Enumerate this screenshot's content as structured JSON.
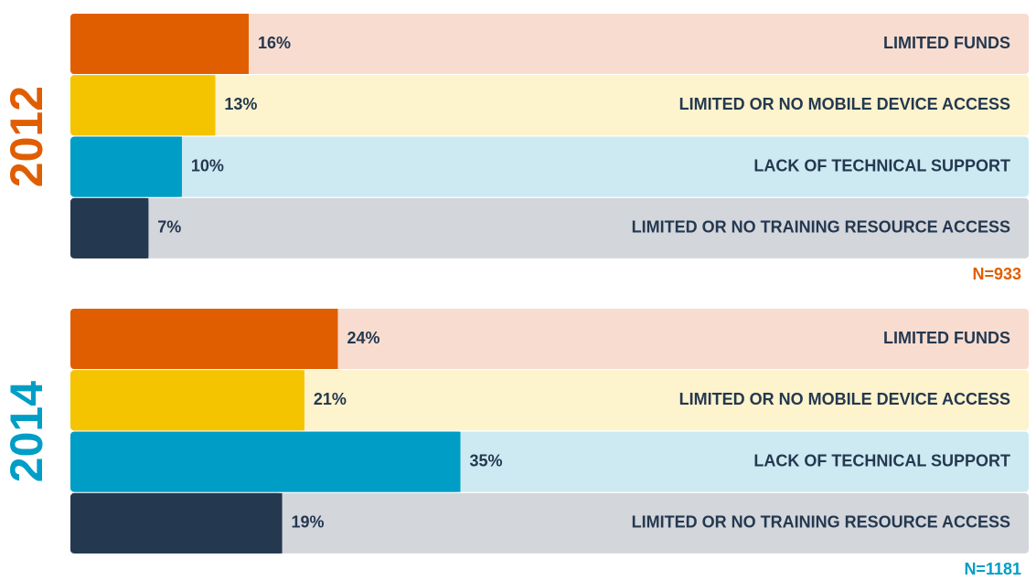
{
  "chart_data": [
    {
      "type": "bar",
      "orientation": "horizontal",
      "title": "2012",
      "accent_color": "#e05e00",
      "categories": [
        "LIMITED FUNDS",
        "LIMITED OR NO MOBILE DEVICE ACCESS",
        "LACK OF TECHNICAL SUPPORT",
        "LIMITED OR NO TRAINING RESOURCE ACCESS"
      ],
      "values": [
        16,
        13,
        10,
        7
      ],
      "value_labels": [
        "16%",
        "13%",
        "10%",
        "7%"
      ],
      "colors": [
        "#e05e00",
        "#f5c400",
        "#009ec6",
        "#243850"
      ],
      "track_colors": [
        "#f8dccf",
        "#fdf3cc",
        "#cdeaf2",
        "#d3d6db"
      ],
      "xlim": [
        0,
        86
      ],
      "annotation": "N=933"
    },
    {
      "type": "bar",
      "orientation": "horizontal",
      "title": "2014",
      "accent_color": "#009ec6",
      "categories": [
        "LIMITED FUNDS",
        "LIMITED OR NO MOBILE DEVICE ACCESS",
        "LACK OF TECHNICAL SUPPORT",
        "LIMITED OR NO TRAINING RESOURCE ACCESS"
      ],
      "values": [
        24,
        21,
        35,
        19
      ],
      "value_labels": [
        "24%",
        "21%",
        "35%",
        "19%"
      ],
      "colors": [
        "#e05e00",
        "#f5c400",
        "#009ec6",
        "#243850"
      ],
      "track_colors": [
        "#f8dccf",
        "#fdf3cc",
        "#cdeaf2",
        "#d3d6db"
      ],
      "xlim": [
        0,
        86
      ],
      "annotation": "N=1181"
    }
  ]
}
